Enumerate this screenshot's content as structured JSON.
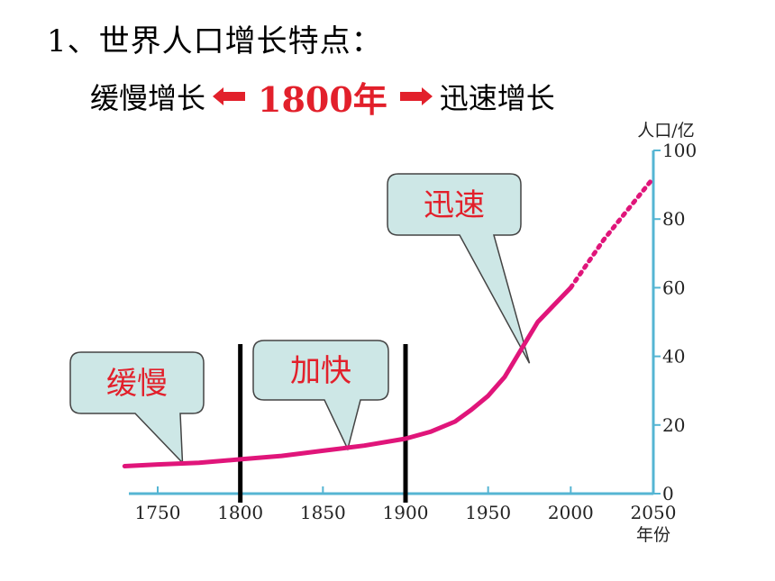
{
  "heading": "1、世界人口增长特点：",
  "summary": {
    "left": "缓慢增长",
    "year": "1800年",
    "right": "迅速增长"
  },
  "colors": {
    "curve": "#e0157a",
    "axis": "#55b5d3",
    "callout_fill": "#cde7e6",
    "callout_text": "#e2202b",
    "divider": "#000000",
    "arrow": "#e2202b"
  },
  "chart_data": {
    "type": "line",
    "title": "",
    "xlabel": "年份",
    "ylabel": "人口/亿",
    "xlim": [
      1730,
      2050
    ],
    "ylim": [
      0,
      100
    ],
    "x_ticks": [
      1750,
      1800,
      1850,
      1900,
      1950,
      2000,
      2050
    ],
    "y_ticks": [
      0,
      20,
      40,
      60,
      80,
      100
    ],
    "series": [
      {
        "style": "solid",
        "points": [
          [
            1730,
            8
          ],
          [
            1750,
            8.5
          ],
          [
            1775,
            9
          ],
          [
            1800,
            10
          ],
          [
            1825,
            11
          ],
          [
            1850,
            12.5
          ],
          [
            1875,
            14
          ],
          [
            1900,
            16
          ],
          [
            1915,
            18
          ],
          [
            1930,
            21
          ],
          [
            1940,
            24.5
          ],
          [
            1950,
            28.5
          ],
          [
            1960,
            34
          ],
          [
            1970,
            42
          ],
          [
            1980,
            50
          ],
          [
            1990,
            55
          ],
          [
            2000,
            60
          ]
        ]
      },
      {
        "style": "dotted",
        "points": [
          [
            2000,
            60
          ],
          [
            2010,
            67
          ],
          [
            2020,
            74
          ],
          [
            2030,
            80
          ],
          [
            2040,
            86
          ],
          [
            2050,
            92
          ]
        ]
      }
    ],
    "dividers": [
      1800,
      1900
    ],
    "callouts": [
      {
        "label": "缓慢",
        "target": [
          1765,
          9
        ]
      },
      {
        "label": "加快",
        "target": [
          1865,
          13
        ]
      },
      {
        "label": "迅速",
        "target": [
          1975,
          38
        ]
      }
    ]
  }
}
